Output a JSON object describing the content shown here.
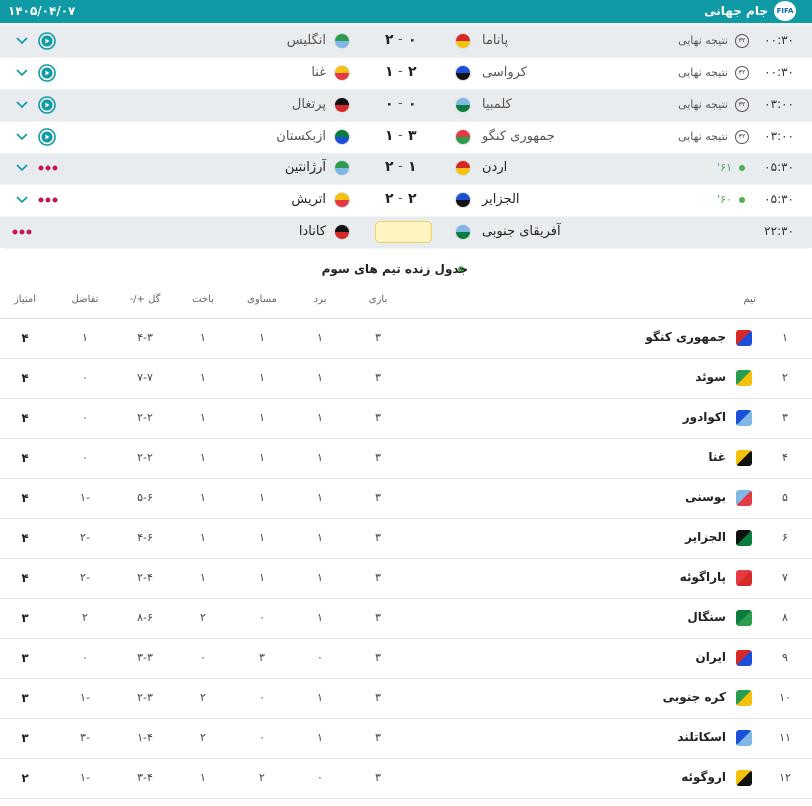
{
  "header": {
    "logo": "FIFA",
    "title": "جام جهانی",
    "date": "۱۴۰۵/۰۴/۰۷"
  },
  "matches": [
    {
      "time": "۰۰:۳۰",
      "badge": "۳۲",
      "status": "نتیجه نهایی",
      "home": "پاناما",
      "home_score": "۰",
      "separator": "-",
      "away_score": "۲",
      "away": "انگلیس"
    },
    {
      "time": "۰۰:۳۰",
      "badge": "۳۲",
      "status": "نتیجه نهایی",
      "home": "کرواسی",
      "home_score": "۲",
      "separator": "-",
      "away_score": "۱",
      "away": "غنا"
    },
    {
      "time": "۰۳:۰۰",
      "badge": "۳۲",
      "status": "نتیجه نهایی",
      "home": "کلمبیا",
      "home_score": "۰",
      "separator": "-",
      "away_score": "۰",
      "away": "پرتغال"
    },
    {
      "time": "۰۳:۰۰",
      "badge": "۳۲",
      "status": "نتیجه نهایی",
      "home": "جمهوری کنگو",
      "home_score": "۳",
      "separator": "-",
      "away_score": "۱",
      "away": "ازبکستان"
    },
    {
      "time": "۰۵:۳۰",
      "minute": "۶۱'",
      "home": "اردن",
      "home_score": "۱",
      "separator": "-",
      "away_score": "۲",
      "away": "آرژانتین"
    },
    {
      "time": "۰۵:۳۰",
      "minute": "۶۰'",
      "home": "الجزایر",
      "home_score": "۲",
      "separator": "-",
      "away_score": "۲",
      "away": "اتریش"
    },
    {
      "time": "۲۲:۳۰",
      "home": "آفریقای جنوبی",
      "away": "کانادا"
    }
  ],
  "standings": {
    "title": "جدول زنده تیم های سوم",
    "columns": [
      "تیم",
      "بازی",
      "برد",
      "مساوی",
      "باخت",
      "گل +/-",
      "تفاضل",
      "امتیاز"
    ],
    "rows": [
      [
        "۱",
        "جمهوری کنگو",
        "۳",
        "۱",
        "۱",
        "۱",
        "۴-۳",
        "۱",
        "۴"
      ],
      [
        "۲",
        "سوئد",
        "۳",
        "۱",
        "۱",
        "۱",
        "۷-۷",
        "۰",
        "۴"
      ],
      [
        "۳",
        "اکوادور",
        "۳",
        "۱",
        "۱",
        "۱",
        "۲-۲",
        "۰",
        "۴"
      ],
      [
        "۴",
        "غنا",
        "۳",
        "۱",
        "۱",
        "۱",
        "۲-۲",
        "۰",
        "۴"
      ],
      [
        "۵",
        "بوسنی",
        "۳",
        "۱",
        "۱",
        "۱",
        "۵-۶",
        "-۱",
        "۴"
      ],
      [
        "۶",
        "الجزایر",
        "۳",
        "۱",
        "۱",
        "۱",
        "۴-۶",
        "-۲",
        "۴"
      ],
      [
        "۷",
        "پاراگوئه",
        "۳",
        "۱",
        "۱",
        "۱",
        "۲-۴",
        "-۲",
        "۴"
      ],
      [
        "۸",
        "سنگال",
        "۳",
        "۱",
        "۰",
        "۲",
        "۸-۶",
        "۲",
        "۳"
      ],
      [
        "۹",
        "ایران",
        "۳",
        "۰",
        "۳",
        "۰",
        "۳-۳",
        "۰",
        "۳"
      ],
      [
        "۱۰",
        "کره جنوبی",
        "۳",
        "۱",
        "۰",
        "۲",
        "۲-۳",
        "-۱",
        "۳"
      ],
      [
        "۱۱",
        "اسکاتلند",
        "۳",
        "۱",
        "۰",
        "۲",
        "۱-۴",
        "-۳",
        "۳"
      ],
      [
        "۱۲",
        "اروگوئه",
        "۳",
        "۰",
        "۲",
        "۱",
        "۳-۴",
        "-۱",
        "۲"
      ]
    ]
  }
}
